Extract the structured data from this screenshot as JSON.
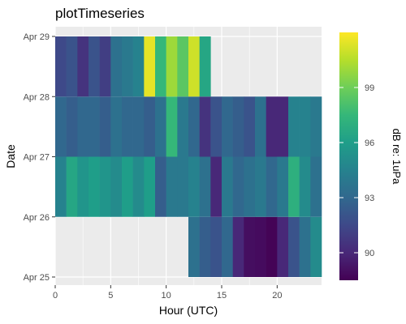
{
  "chart_data": {
    "type": "heatmap",
    "title": "plotTimeseries",
    "xlabel": "Hour (UTC)",
    "ylabel": "Date",
    "xlim": [
      0,
      24
    ],
    "x_ticks": [
      0,
      5,
      10,
      15,
      20
    ],
    "x_tick_labels": [
      "0",
      "5",
      "10",
      "15",
      "20"
    ],
    "y_ticks": [
      "Apr 25",
      "Apr 26",
      "Apr 27",
      "Apr 28",
      "Apr 29"
    ],
    "legend": {
      "title": "dB re: 1uPa",
      "min": 88.5,
      "max": 102,
      "ticks": [
        90,
        93,
        96,
        99
      ],
      "placement": "right",
      "colors": [
        "#440154",
        "#482878",
        "#3e4989",
        "#31688e",
        "#26828e",
        "#1f9e89",
        "#35b779",
        "#6ece58",
        "#b5de2b",
        "#fde725"
      ]
    },
    "rows": [
      {
        "date": "Apr 25",
        "start_hour": 12,
        "values": [
          93.5,
          92.5,
          92,
          93,
          90,
          89,
          88.9,
          88.6,
          90,
          92,
          93.5,
          95
        ]
      },
      {
        "date": "Apr 26",
        "start_hour": 0,
        "values": [
          94.5,
          96.5,
          95.5,
          96,
          95.5,
          95,
          96,
          95,
          96,
          92.5,
          94,
          94,
          94.5,
          93.5,
          90,
          94,
          93,
          93.5,
          94,
          93,
          94,
          97,
          95,
          93.5
        ]
      },
      {
        "date": "Apr 27",
        "start_hour": 0,
        "values": [
          93,
          92.5,
          93,
          93,
          92.5,
          93.5,
          93,
          93,
          92.5,
          93.5,
          97.5,
          94,
          93,
          90.5,
          92,
          93,
          92.5,
          92,
          93.5,
          90,
          90,
          94.5,
          94.5,
          94
        ]
      },
      {
        "date": "Apr 28",
        "start_hour": 0,
        "values": [
          91.5,
          92,
          90.5,
          92,
          91,
          93.5,
          94,
          94.5,
          101.5,
          97.5,
          100,
          98.5,
          101,
          96.5
        ]
      }
    ]
  }
}
